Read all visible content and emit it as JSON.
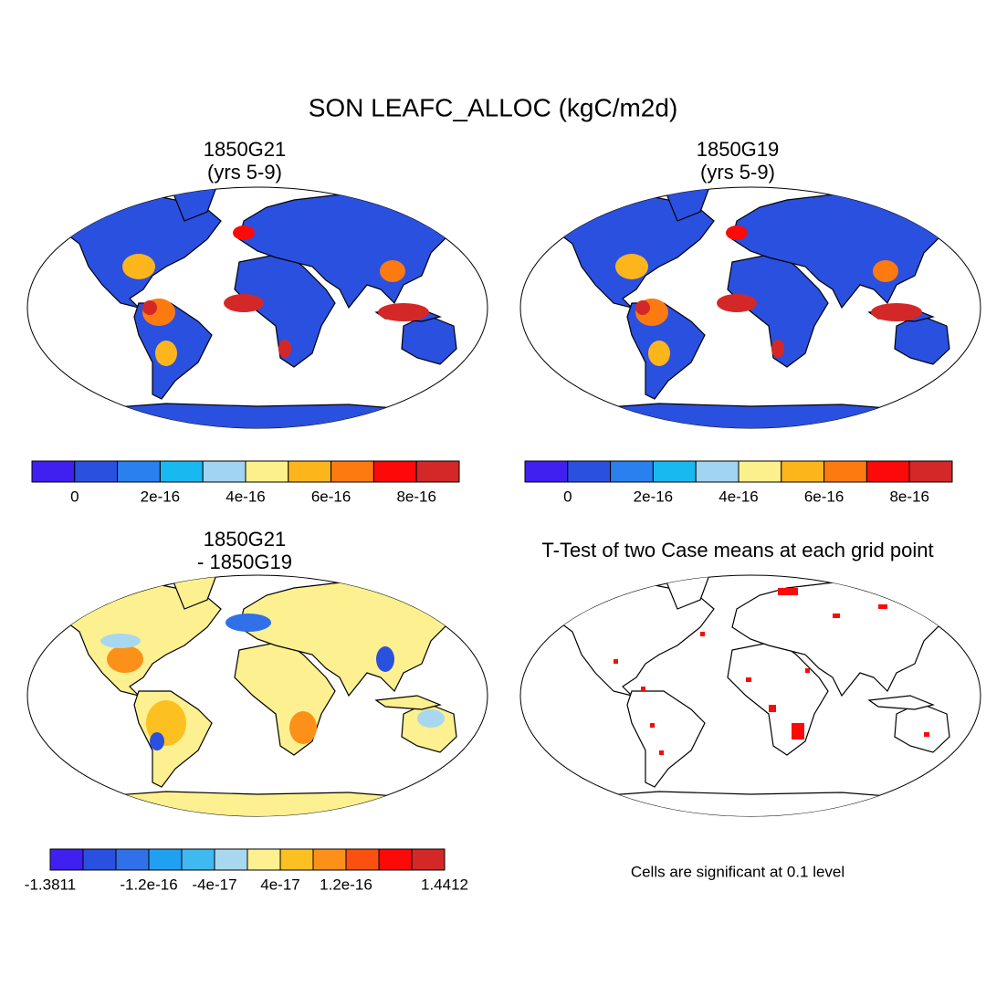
{
  "title": "SON LEAFC_ALLOC (kgC/m2d)",
  "panels": [
    {
      "title_lines": [
        "1850G21",
        "(yrs 5-9)"
      ],
      "colorbar": {
        "colors": [
          "#4020f0",
          "#2a50e0",
          "#2a80ee",
          "#18b8f0",
          "#a0d4f0",
          "#fcf08c",
          "#fcb61c",
          "#fc7a10",
          "#fc0a0a",
          "#d42828"
        ],
        "labels": [
          null,
          "0",
          null,
          "2e-16",
          null,
          "4e-16",
          null,
          "6e-16",
          null,
          "8e-16",
          null
        ]
      }
    },
    {
      "title_lines": [
        "1850G19",
        "(yrs 5-9)"
      ],
      "colorbar": {
        "colors": [
          "#4020f0",
          "#2a50e0",
          "#2a80ee",
          "#18b8f0",
          "#a0d4f0",
          "#fcf08c",
          "#fcb61c",
          "#fc7a10",
          "#fc0a0a",
          "#d42828"
        ],
        "labels": [
          null,
          "0",
          null,
          "2e-16",
          null,
          "4e-16",
          null,
          "6e-16",
          null,
          "8e-16",
          null
        ]
      }
    },
    {
      "title_lines": [
        "1850G21",
        "- 1850G19"
      ],
      "colorbar": {
        "colors": [
          "#4020f0",
          "#2a50e0",
          "#3070e8",
          "#20a0f0",
          "#40b8f0",
          "#a8d8f0",
          "#fcf090",
          "#fcc020",
          "#fc9018",
          "#fc5010",
          "#fc0a0a",
          "#d42828"
        ],
        "labels": [
          "-1.3811",
          null,
          null,
          "-1.2e-16",
          null,
          "-4e-17",
          null,
          "4e-17",
          null,
          "1.2e-16",
          null,
          null,
          "1.4412"
        ]
      }
    },
    {
      "title_lines": [
        "T-Test of two Case means at each grid point"
      ],
      "note": "Cells are significant at 0.1 level"
    }
  ]
}
